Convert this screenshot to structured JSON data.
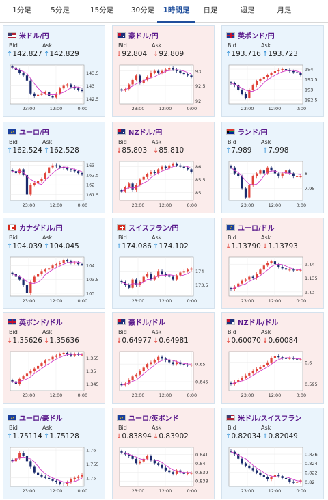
{
  "tabs": [
    {
      "label": "1分足",
      "active": false
    },
    {
      "label": "5分足",
      "active": false
    },
    {
      "label": "15分足",
      "active": false
    },
    {
      "label": "30分足",
      "active": false
    },
    {
      "label": "1時間足",
      "active": true
    },
    {
      "label": "日足",
      "active": false
    },
    {
      "label": "週足",
      "active": false
    },
    {
      "label": "月足",
      "active": false
    }
  ],
  "labels": {
    "bid": "Bid",
    "ask": "Ask",
    "up_arrow": "↑",
    "down_arrow": "↓"
  },
  "colors": {
    "up": "#2f8fd6",
    "down": "#e0443a",
    "ma": "#d23cc9",
    "title": "#5a1a8c",
    "card_up_bg": "#eaf4fc",
    "card_down_bg": "#fbeceb"
  },
  "cards": [
    {
      "name": "米ドル/円",
      "flag": "us-jp",
      "dir": "up",
      "bid": "142.827",
      "ask": "142.829",
      "chart": {
        "y_ticks": [
          "143.5",
          "143",
          "142.5"
        ],
        "x_ticks": [
          "23:00",
          "12:00",
          "0:00"
        ],
        "ylim": [
          142.3,
          143.8
        ],
        "trend": [
          143.7,
          143.6,
          143.5,
          143.4,
          143.2,
          142.7,
          142.6,
          142.65,
          142.7,
          142.75,
          142.6,
          142.55,
          142.7,
          142.9,
          143.0,
          143.05,
          142.95,
          142.9,
          142.85,
          142.8
        ]
      }
    },
    {
      "name": "豪ドル/円",
      "flag": "au-jp",
      "dir": "down",
      "bid": "92.804",
      "ask": "92.809",
      "chart": {
        "y_ticks": [
          "93",
          "92.5",
          "92"
        ],
        "x_ticks": [
          "23:00",
          "12:00",
          "0:00"
        ],
        "ylim": [
          91.9,
          93.2
        ],
        "trend": [
          92.35,
          92.4,
          92.55,
          92.7,
          92.85,
          92.6,
          92.7,
          92.8,
          92.95,
          93.0,
          92.95,
          93.0,
          93.05,
          93.1,
          93.05,
          93.0,
          92.95,
          92.9,
          92.85,
          92.81
        ]
      }
    },
    {
      "name": "英ポンド/円",
      "flag": "gb-jp",
      "dir": "up",
      "bid": "193.716",
      "ask": "193.723",
      "chart": {
        "y_ticks": [
          "194",
          "193.5",
          "193",
          "192.5"
        ],
        "x_ticks": [
          "23:00",
          "12:00",
          "0:00"
        ],
        "ylim": [
          192.3,
          194.2
        ],
        "trend": [
          193.3,
          193.2,
          193.0,
          192.8,
          192.6,
          193.0,
          193.2,
          193.4,
          193.5,
          193.6,
          193.7,
          193.8,
          193.9,
          193.95,
          194.0,
          193.95,
          193.9,
          193.85,
          193.8,
          193.72
        ]
      }
    },
    {
      "name": "ユーロ/円",
      "flag": "eu-jp",
      "dir": "up",
      "bid": "162.524",
      "ask": "162.528",
      "chart": {
        "y_ticks": [
          "163",
          "162.5",
          "162",
          "161.5"
        ],
        "x_ticks": [
          "23:00",
          "12:00",
          "0:00"
        ],
        "ylim": [
          161.2,
          163.2
        ],
        "trend": [
          162.7,
          162.6,
          162.8,
          162.5,
          161.5,
          162.0,
          162.1,
          162.2,
          162.3,
          162.6,
          162.9,
          163.0,
          162.95,
          162.9,
          162.85,
          162.8,
          162.75,
          162.7,
          162.6,
          162.52
        ]
      }
    },
    {
      "name": "NZドル/円",
      "flag": "nz-jp",
      "dir": "down",
      "bid": "85.803",
      "ask": "85.810",
      "chart": {
        "y_ticks": [
          "86",
          "85.5",
          "85"
        ],
        "x_ticks": [
          "23:00",
          "12:00",
          "0:00"
        ],
        "ylim": [
          84.7,
          86.2
        ],
        "trend": [
          85.05,
          85.2,
          85.35,
          85.1,
          85.3,
          85.5,
          85.6,
          85.7,
          85.8,
          85.75,
          85.9,
          86.0,
          85.95,
          86.05,
          86.1,
          86.05,
          86.0,
          85.95,
          85.9,
          85.8
        ]
      }
    },
    {
      "name": "ランド/円",
      "flag": "za-jp",
      "dir": "up",
      "bid": "7.989",
      "ask": "7.998",
      "chart": {
        "y_ticks": [
          "8",
          "7.95"
        ],
        "x_ticks": [
          "23:00",
          "12:00",
          "0:00"
        ],
        "ylim": [
          7.91,
          8.04
        ],
        "trend": [
          8.02,
          8.0,
          7.99,
          7.95,
          7.92,
          7.96,
          7.99,
          8.0,
          8.01,
          8.0,
          8.02,
          8.01,
          8.0,
          7.99,
          8.0,
          8.01,
          8.0,
          7.99,
          7.99,
          7.99
        ]
      }
    },
    {
      "name": "カナダドル/円",
      "flag": "ca-jp",
      "dir": "up",
      "bid": "104.039",
      "ask": "104.045",
      "chart": {
        "y_ticks": [
          "104",
          "103.5",
          "103"
        ],
        "x_ticks": [
          "23:00",
          "12:00",
          "0:00"
        ],
        "ylim": [
          102.9,
          104.3
        ],
        "trend": [
          103.7,
          103.6,
          103.5,
          103.3,
          103.0,
          103.4,
          103.6,
          103.7,
          103.8,
          103.85,
          103.9,
          104.0,
          104.05,
          104.1,
          104.2,
          104.15,
          104.1,
          104.1,
          104.05,
          104.04
        ]
      }
    },
    {
      "name": "スイスフラン/円",
      "flag": "ch-jp",
      "dir": "up",
      "bid": "174.086",
      "ask": "174.102",
      "chart": {
        "y_ticks": [
          "174",
          "173.5"
        ],
        "x_ticks": [
          "23:00",
          "12:00",
          "0:00"
        ],
        "ylim": [
          173.1,
          174.5
        ],
        "trend": [
          173.6,
          173.5,
          173.4,
          173.7,
          173.5,
          173.6,
          173.8,
          173.9,
          173.7,
          173.8,
          174.0,
          173.9,
          173.85,
          173.8,
          173.7,
          173.85,
          173.95,
          174.0,
          174.05,
          174.09
        ]
      }
    },
    {
      "name": "ユーロ/ドル",
      "flag": "eu-us",
      "dir": "down",
      "bid": "1.13790",
      "ask": "1.13793",
      "chart": {
        "y_ticks": [
          "1.14",
          "1.135",
          "1.13"
        ],
        "x_ticks": [
          "23:00",
          "12:00",
          "0:00"
        ],
        "ylim": [
          1.1285,
          1.1425
        ],
        "trend": [
          1.131,
          1.132,
          1.133,
          1.134,
          1.1345,
          1.1355,
          1.135,
          1.1365,
          1.138,
          1.1395,
          1.1405,
          1.141,
          1.14,
          1.139,
          1.1385,
          1.138,
          1.138,
          1.1378,
          1.1379,
          1.1379
        ]
      }
    },
    {
      "name": "英ポンド/ドル",
      "flag": "gb-us",
      "dir": "down",
      "bid": "1.35626",
      "ask": "1.35636",
      "chart": {
        "y_ticks": [
          "1.355",
          "1.35",
          "1.345"
        ],
        "x_ticks": [
          "23:00",
          "12:00",
          "0:00"
        ],
        "ylim": [
          1.3425,
          1.3575
        ],
        "trend": [
          1.346,
          1.345,
          1.347,
          1.348,
          1.349,
          1.35,
          1.351,
          1.352,
          1.353,
          1.354,
          1.3545,
          1.3555,
          1.356,
          1.3565,
          1.357,
          1.3565,
          1.356,
          1.3565,
          1.3563,
          1.3563
        ]
      }
    },
    {
      "name": "豪ドル/ドル",
      "flag": "au-us",
      "dir": "down",
      "bid": "0.64977",
      "ask": "0.64981",
      "chart": {
        "y_ticks": [
          "0.65",
          "0.645"
        ],
        "x_ticks": [
          "23:00",
          "12:00",
          "0:00"
        ],
        "ylim": [
          0.6425,
          0.6535
        ],
        "trend": [
          0.644,
          0.6445,
          0.6455,
          0.6465,
          0.647,
          0.648,
          0.649,
          0.65,
          0.6505,
          0.651,
          0.652,
          0.6515,
          0.651,
          0.6505,
          0.65,
          0.6505,
          0.65,
          0.6498,
          0.6497,
          0.6498
        ]
      }
    },
    {
      "name": "NZドル/ドル",
      "flag": "nz-us",
      "dir": "down",
      "bid": "0.60070",
      "ask": "0.60084",
      "chart": {
        "y_ticks": [
          "0.6",
          "0.595"
        ],
        "x_ticks": [
          "23:00",
          "12:00",
          "0:00"
        ],
        "ylim": [
          0.5935,
          0.6025
        ],
        "trend": [
          0.595,
          0.5955,
          0.596,
          0.5965,
          0.597,
          0.5975,
          0.598,
          0.5985,
          0.599,
          0.5995,
          0.6,
          0.601,
          0.6015,
          0.6012,
          0.601,
          0.6008,
          0.601,
          0.6008,
          0.6007,
          0.6007
        ]
      }
    },
    {
      "name": "ユーロ/豪ドル",
      "flag": "eu-au",
      "dir": "up",
      "bid": "1.75114",
      "ask": "1.75128",
      "chart": {
        "y_ticks": [
          "1.76",
          "1.755",
          "1.75"
        ],
        "x_ticks": [
          "23:00",
          "12:00",
          "0:00"
        ],
        "ylim": [
          1.747,
          1.761
        ],
        "trend": [
          1.756,
          1.757,
          1.759,
          1.758,
          1.756,
          1.754,
          1.752,
          1.751,
          1.7505,
          1.75,
          1.7495,
          1.749,
          1.7485,
          1.748,
          1.7478,
          1.7485,
          1.7495,
          1.75,
          1.7505,
          1.7511
        ]
      }
    },
    {
      "name": "ユーロ/英ポンド",
      "flag": "eu-gb",
      "dir": "down",
      "bid": "0.83894",
      "ask": "0.83902",
      "chart": {
        "y_ticks": [
          "0.841",
          "0.84",
          "0.839",
          "0.838"
        ],
        "x_ticks": [
          "23:00",
          "12:00",
          "0:00"
        ],
        "ylim": [
          0.8374,
          0.8418
        ],
        "trend": [
          0.8412,
          0.841,
          0.8408,
          0.8405,
          0.84,
          0.8402,
          0.8405,
          0.8408,
          0.8403,
          0.84,
          0.8398,
          0.8395,
          0.8392,
          0.839,
          0.8388,
          0.8392,
          0.839,
          0.8388,
          0.8389,
          0.8389
        ]
      }
    },
    {
      "name": "米ドル/スイスフラン",
      "flag": "us-ch",
      "dir": "up",
      "bid": "0.82034",
      "ask": "0.82049",
      "chart": {
        "y_ticks": [
          "0.826",
          "0.824",
          "0.822",
          "0.82"
        ],
        "x_ticks": [
          "23:00",
          "12:00",
          "0:00"
        ],
        "ylim": [
          0.819,
          0.8275
        ],
        "trend": [
          0.8265,
          0.826,
          0.825,
          0.824,
          0.8235,
          0.823,
          0.8225,
          0.822,
          0.8215,
          0.821,
          0.8205,
          0.821,
          0.8215,
          0.8212,
          0.8208,
          0.8205,
          0.82,
          0.8198,
          0.82,
          0.8203
        ]
      }
    }
  ]
}
